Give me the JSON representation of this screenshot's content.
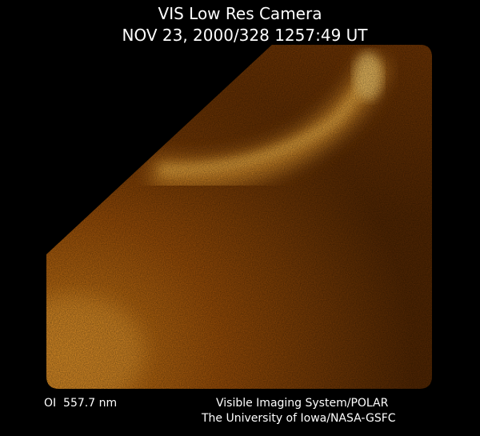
{
  "header": {
    "title": "VIS Low Res Camera",
    "timestamp": "NOV 23, 2000/328 1257:49 UT"
  },
  "footer": {
    "filter": "OI  557.7 nm",
    "instrument": "Visible Imaging System/POLAR",
    "credit": "The University of Iowa/NASA-GSFC"
  }
}
